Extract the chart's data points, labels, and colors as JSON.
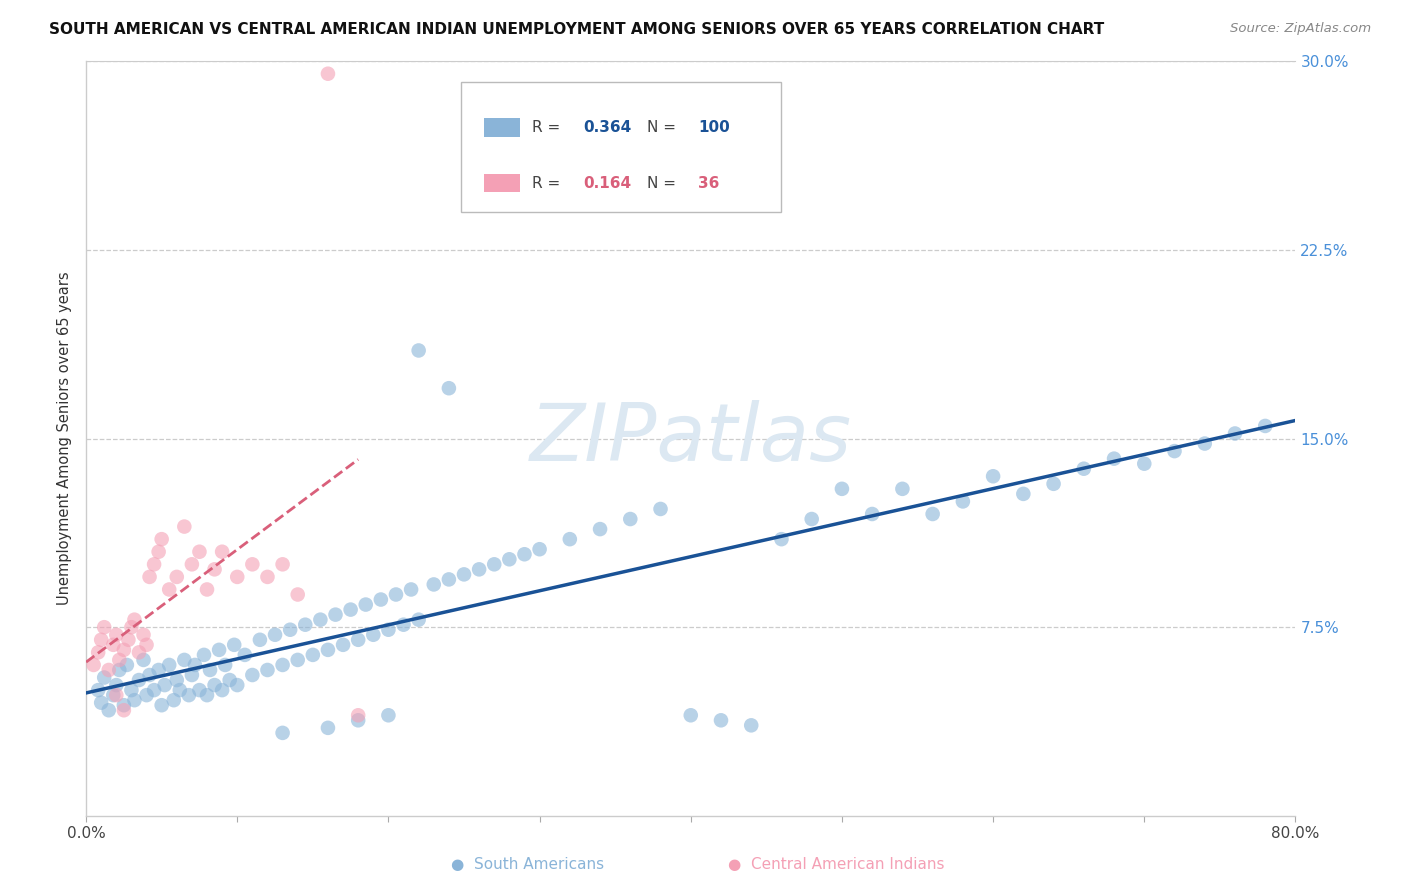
{
  "title": "SOUTH AMERICAN VS CENTRAL AMERICAN INDIAN UNEMPLOYMENT AMONG SENIORS OVER 65 YEARS CORRELATION CHART",
  "source": "Source: ZipAtlas.com",
  "ylabel": "Unemployment Among Seniors over 65 years",
  "xlim": [
    0.0,
    0.8
  ],
  "ylim": [
    0.0,
    0.3
  ],
  "xticks": [
    0.0,
    0.1,
    0.2,
    0.3,
    0.4,
    0.5,
    0.6,
    0.7,
    0.8
  ],
  "xticklabels": [
    "0.0%",
    "",
    "",
    "",
    "",
    "",
    "",
    "",
    "80.0%"
  ],
  "ytick_positions": [
    0.075,
    0.15,
    0.225,
    0.3
  ],
  "yticklabels": [
    "7.5%",
    "15.0%",
    "22.5%",
    "30.0%"
  ],
  "R_blue": "0.364",
  "N_blue": "100",
  "R_pink": "0.164",
  "N_pink": "36",
  "blue_color": "#8ab4d8",
  "pink_color": "#f4a0b5",
  "blue_line_color": "#1a5296",
  "pink_line_color": "#d95f7a",
  "tick_color": "#4a90d9",
  "watermark_color": "#dce8f2",
  "background_color": "#ffffff",
  "blue_x": [
    0.008,
    0.01,
    0.012,
    0.015,
    0.018,
    0.02,
    0.022,
    0.025,
    0.027,
    0.03,
    0.032,
    0.035,
    0.038,
    0.04,
    0.042,
    0.045,
    0.048,
    0.05,
    0.052,
    0.055,
    0.058,
    0.06,
    0.062,
    0.065,
    0.068,
    0.07,
    0.072,
    0.075,
    0.078,
    0.08,
    0.082,
    0.085,
    0.088,
    0.09,
    0.092,
    0.095,
    0.098,
    0.1,
    0.105,
    0.11,
    0.115,
    0.12,
    0.125,
    0.13,
    0.135,
    0.14,
    0.145,
    0.15,
    0.155,
    0.16,
    0.165,
    0.17,
    0.175,
    0.18,
    0.185,
    0.19,
    0.195,
    0.2,
    0.205,
    0.21,
    0.215,
    0.22,
    0.23,
    0.24,
    0.25,
    0.26,
    0.27,
    0.28,
    0.29,
    0.3,
    0.32,
    0.34,
    0.36,
    0.38,
    0.4,
    0.42,
    0.44,
    0.46,
    0.48,
    0.5,
    0.52,
    0.54,
    0.56,
    0.58,
    0.6,
    0.62,
    0.64,
    0.66,
    0.68,
    0.7,
    0.72,
    0.74,
    0.76,
    0.78,
    0.22,
    0.16,
    0.18,
    0.2,
    0.13,
    0.24
  ],
  "blue_y": [
    0.05,
    0.045,
    0.055,
    0.042,
    0.048,
    0.052,
    0.058,
    0.044,
    0.06,
    0.05,
    0.046,
    0.054,
    0.062,
    0.048,
    0.056,
    0.05,
    0.058,
    0.044,
    0.052,
    0.06,
    0.046,
    0.054,
    0.05,
    0.062,
    0.048,
    0.056,
    0.06,
    0.05,
    0.064,
    0.048,
    0.058,
    0.052,
    0.066,
    0.05,
    0.06,
    0.054,
    0.068,
    0.052,
    0.064,
    0.056,
    0.07,
    0.058,
    0.072,
    0.06,
    0.074,
    0.062,
    0.076,
    0.064,
    0.078,
    0.066,
    0.08,
    0.068,
    0.082,
    0.07,
    0.084,
    0.072,
    0.086,
    0.074,
    0.088,
    0.076,
    0.09,
    0.078,
    0.092,
    0.094,
    0.096,
    0.098,
    0.1,
    0.102,
    0.104,
    0.106,
    0.11,
    0.114,
    0.118,
    0.122,
    0.04,
    0.038,
    0.036,
    0.11,
    0.118,
    0.13,
    0.12,
    0.13,
    0.12,
    0.125,
    0.135,
    0.128,
    0.132,
    0.138,
    0.142,
    0.14,
    0.145,
    0.148,
    0.152,
    0.155,
    0.185,
    0.035,
    0.038,
    0.04,
    0.033,
    0.17
  ],
  "pink_x": [
    0.005,
    0.008,
    0.01,
    0.012,
    0.015,
    0.018,
    0.02,
    0.022,
    0.025,
    0.028,
    0.03,
    0.032,
    0.035,
    0.038,
    0.04,
    0.042,
    0.045,
    0.048,
    0.05,
    0.055,
    0.06,
    0.065,
    0.07,
    0.075,
    0.08,
    0.085,
    0.09,
    0.1,
    0.11,
    0.12,
    0.13,
    0.14,
    0.16,
    0.02,
    0.025,
    0.18
  ],
  "pink_y": [
    0.06,
    0.065,
    0.07,
    0.075,
    0.058,
    0.068,
    0.072,
    0.062,
    0.066,
    0.07,
    0.075,
    0.078,
    0.065,
    0.072,
    0.068,
    0.095,
    0.1,
    0.105,
    0.11,
    0.09,
    0.095,
    0.115,
    0.1,
    0.105,
    0.09,
    0.098,
    0.105,
    0.095,
    0.1,
    0.095,
    0.1,
    0.088,
    0.295,
    0.048,
    0.042,
    0.04
  ]
}
